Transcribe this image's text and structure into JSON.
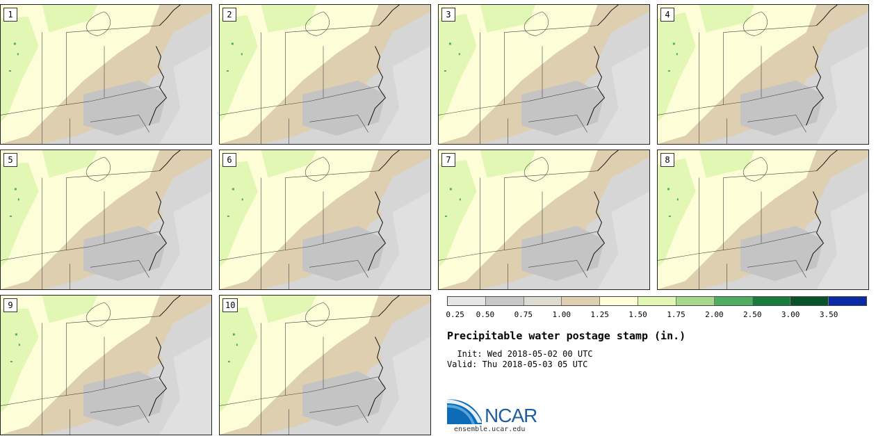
{
  "panels": [
    {
      "label": "1"
    },
    {
      "label": "2"
    },
    {
      "label": "3"
    },
    {
      "label": "4"
    },
    {
      "label": "5"
    },
    {
      "label": "6"
    },
    {
      "label": "7"
    },
    {
      "label": "8"
    },
    {
      "label": "9"
    },
    {
      "label": "10"
    }
  ],
  "colorbar": {
    "colors": [
      "#e6e6e6",
      "#c8c8c8",
      "#dedcd0",
      "#ddcfb0",
      "#fdfdd7",
      "#e2f7b4",
      "#a6d98c",
      "#4fad62",
      "#1a7a3c",
      "#0a5228",
      "#0a2aa6"
    ],
    "ticks": [
      "0.25",
      "0.50",
      "0.75",
      "1.00",
      "1.25",
      "1.50",
      "1.75",
      "2.00",
      "2.50",
      "3.00",
      "3.50"
    ]
  },
  "title": "Precipitable water postage stamp (in.)",
  "init": "  Init: Wed 2018-05-02 00 UTC",
  "valid": "Valid: Thu 2018-05-03 05 UTC",
  "logo": {
    "text": "NCAR",
    "site": "ensemble.ucar.edu"
  }
}
